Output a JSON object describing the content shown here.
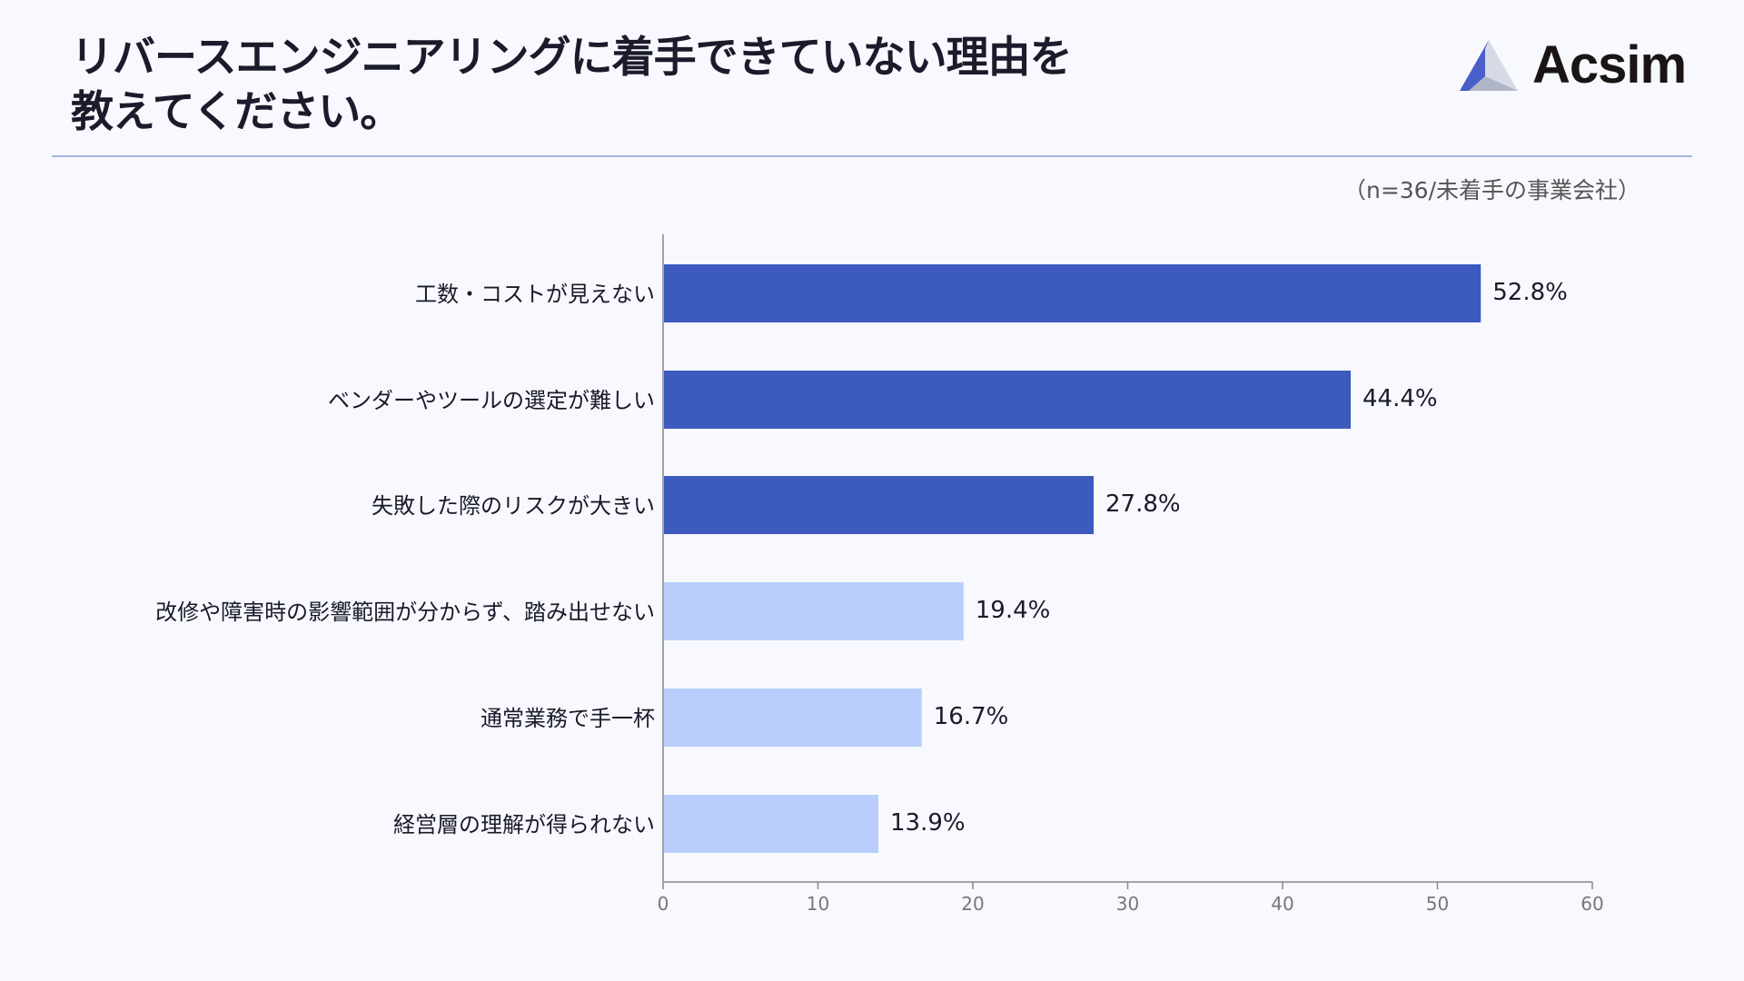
{
  "header": {
    "title_line1": "リバースエンジニアリングに着手できていない理由を",
    "title_line2": "教えてください。",
    "logo_text": "Acsim"
  },
  "colors": {
    "primary": "#3d5abf",
    "secondary": "#b8cdfc",
    "axis": "#888888"
  },
  "chart_data": {
    "type": "bar",
    "orientation": "horizontal",
    "title": "リバースエンジニアリングに着手できていない理由を教えてください。",
    "note": "（n=36/未着手の事業会社）",
    "categories": [
      "工数・コストが見えない",
      "ベンダーやツールの選定が難しい",
      "失敗した際のリスクが大きい",
      "改修や障害時の影響範囲が分からず、踏み出せない",
      "通常業務で手一杯",
      "経営層の理解が得られない"
    ],
    "values": [
      52.8,
      44.4,
      27.8,
      19.4,
      16.7,
      13.9
    ],
    "labels": [
      "52.8%",
      "44.4%",
      "27.8%",
      "19.4%",
      "16.7%",
      "13.9%"
    ],
    "highlight": [
      true,
      true,
      true,
      false,
      false,
      false
    ],
    "xlim": [
      0,
      60
    ],
    "xticks": [
      0,
      10,
      20,
      30,
      40,
      50,
      60
    ],
    "xlabel": "",
    "ylabel": "",
    "grid": false
  }
}
